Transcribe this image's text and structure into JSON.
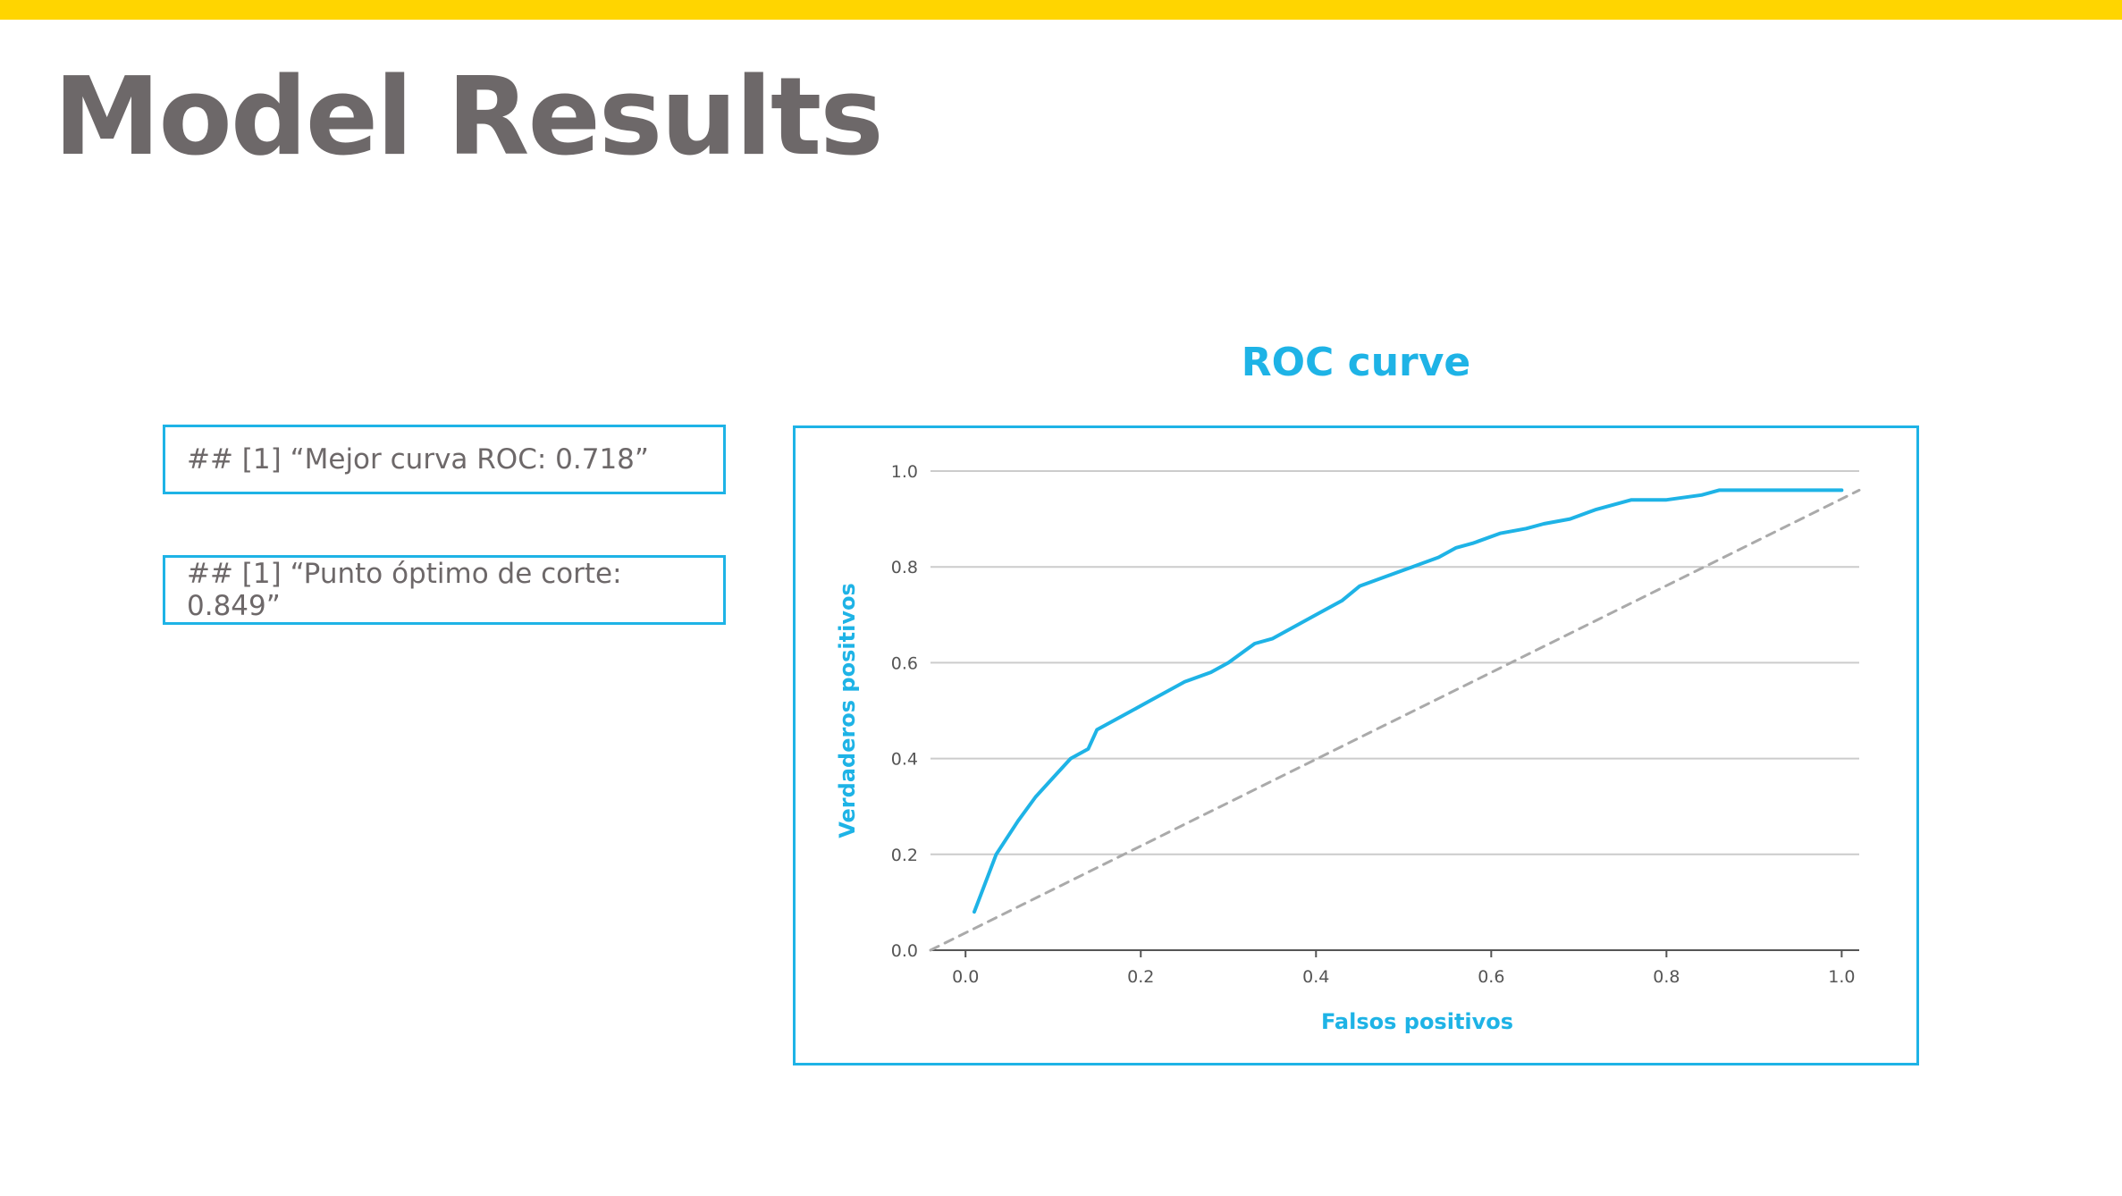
{
  "colors": {
    "accent_bar": "#ffd500",
    "title_text": "#6d6869",
    "accent_blue": "#1eb3e6",
    "box_text": "#6d6869",
    "tick_text": "#555555",
    "grid": "#cccccc",
    "axis": "#555555",
    "diagonal": "#aaaaaa"
  },
  "page": {
    "title": "Model Results"
  },
  "results": [
    {
      "text": "## [1] “Mejor curva ROC: 0.718”"
    },
    {
      "text": "## [1] “Punto óptimo de corte: 0.849”"
    }
  ],
  "chart_data": {
    "type": "line",
    "title": "ROC curve",
    "xlabel": "Falsos positivos",
    "ylabel": "Verdaderos positivos",
    "xlim": [
      -0.04,
      1.02
    ],
    "ylim": [
      0.0,
      1.0
    ],
    "xticks": [
      "0.0",
      "0.2",
      "0.4",
      "0.6",
      "0.8",
      "1.0"
    ],
    "yticks": [
      "0.0",
      "0.2",
      "0.4",
      "0.6",
      "0.8",
      "1.0"
    ],
    "grid": "horizontal",
    "series": [
      {
        "style": "solid",
        "x": [
          0.01,
          0.035,
          0.06,
          0.08,
          0.1,
          0.12,
          0.14,
          0.15,
          0.18,
          0.21,
          0.25,
          0.28,
          0.3,
          0.33,
          0.35,
          0.38,
          0.4,
          0.43,
          0.45,
          0.48,
          0.51,
          0.54,
          0.56,
          0.58,
          0.61,
          0.64,
          0.66,
          0.69,
          0.72,
          0.76,
          0.8,
          0.84,
          0.86,
          0.9,
          0.95,
          1.0
        ],
        "y": [
          0.08,
          0.2,
          0.27,
          0.32,
          0.36,
          0.4,
          0.42,
          0.46,
          0.49,
          0.52,
          0.56,
          0.58,
          0.6,
          0.64,
          0.65,
          0.68,
          0.7,
          0.73,
          0.76,
          0.78,
          0.8,
          0.82,
          0.84,
          0.85,
          0.87,
          0.88,
          0.89,
          0.9,
          0.92,
          0.94,
          0.94,
          0.95,
          0.96,
          0.96,
          0.96,
          0.96
        ]
      },
      {
        "style": "dashed",
        "x": [
          -0.04,
          1.02
        ],
        "y": [
          0.0,
          0.96
        ]
      }
    ]
  }
}
